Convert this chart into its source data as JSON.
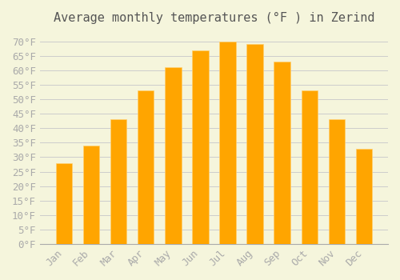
{
  "title": "Average monthly temperatures (°F ) in Zerind",
  "months": [
    "Jan",
    "Feb",
    "Mar",
    "Apr",
    "May",
    "Jun",
    "Jul",
    "Aug",
    "Sep",
    "Oct",
    "Nov",
    "Dec"
  ],
  "values": [
    28,
    34,
    43,
    53,
    61,
    67,
    70,
    69,
    63,
    53,
    43,
    33
  ],
  "bar_color": "#FFA500",
  "background_color": "#F5F5DC",
  "grid_color": "#CCCCCC",
  "yticks": [
    0,
    5,
    10,
    15,
    20,
    25,
    30,
    35,
    40,
    45,
    50,
    55,
    60,
    65,
    70
  ],
  "ylim": [
    0,
    73
  ],
  "title_fontsize": 11,
  "tick_fontsize": 9,
  "font_color": "#AAAAAA",
  "spine_color": "#AAAAAA"
}
